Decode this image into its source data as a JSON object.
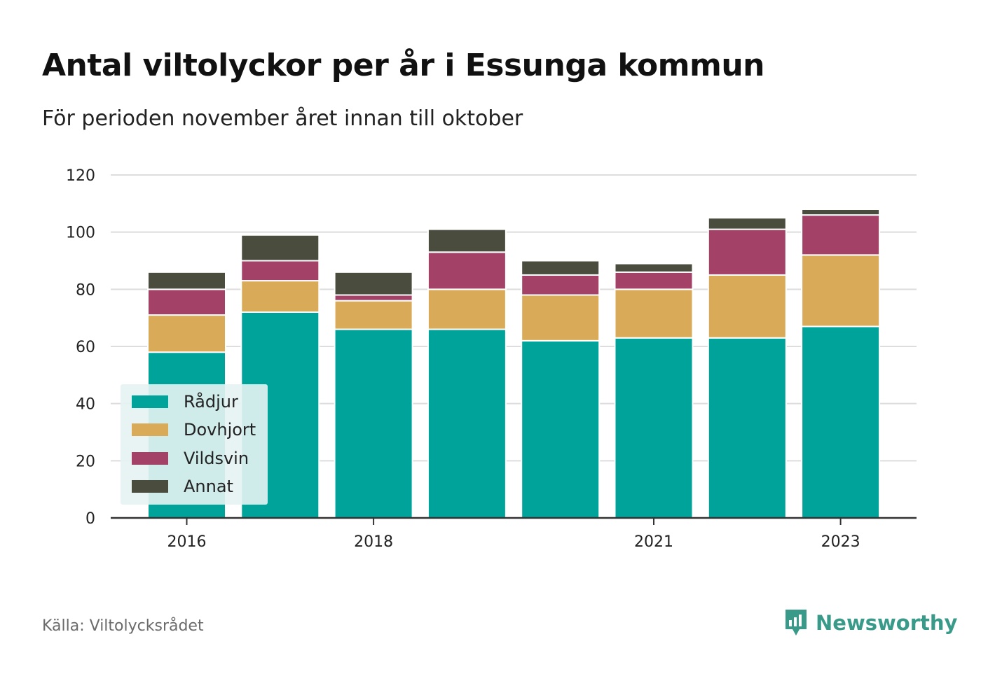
{
  "header": {
    "title": "Antal viltolyckor per år i Essunga kommun",
    "subtitle": "För perioden november året innan till oktober"
  },
  "footer": {
    "source": "Källa: Viltolycksrådet",
    "brand": "Newsworthy"
  },
  "colors": {
    "radjur": "#00a39a",
    "dovhjort": "#d9ab58",
    "vildsvin": "#a34266",
    "annat": "#4a4d3e",
    "grid": "#dddddd",
    "axis": "#333333",
    "brand": "#3a9a8a"
  },
  "chart_data": {
    "type": "bar",
    "stacked": true,
    "categories": [
      "2016",
      "2017",
      "2018",
      "2019",
      "2020",
      "2021",
      "2022",
      "2023"
    ],
    "x_tick_labels": [
      "2016",
      "2018",
      "2021",
      "2023"
    ],
    "series": [
      {
        "name": "Rådjur",
        "color": "#00a39a",
        "values": [
          58,
          72,
          66,
          66,
          62,
          63,
          63,
          67
        ]
      },
      {
        "name": "Dovhjort",
        "color": "#d9ab58",
        "values": [
          13,
          11,
          10,
          14,
          16,
          17,
          22,
          25
        ]
      },
      {
        "name": "Vildsvin",
        "color": "#a34266",
        "values": [
          9,
          7,
          2,
          13,
          7,
          6,
          16,
          14
        ]
      },
      {
        "name": "Annat",
        "color": "#4a4d3e",
        "values": [
          6,
          9,
          8,
          8,
          5,
          3,
          4,
          2
        ]
      }
    ],
    "ylim": [
      0,
      120
    ],
    "yticks": [
      0,
      20,
      40,
      60,
      80,
      100,
      120
    ],
    "grid": true,
    "legend_position": "bottom-left"
  }
}
